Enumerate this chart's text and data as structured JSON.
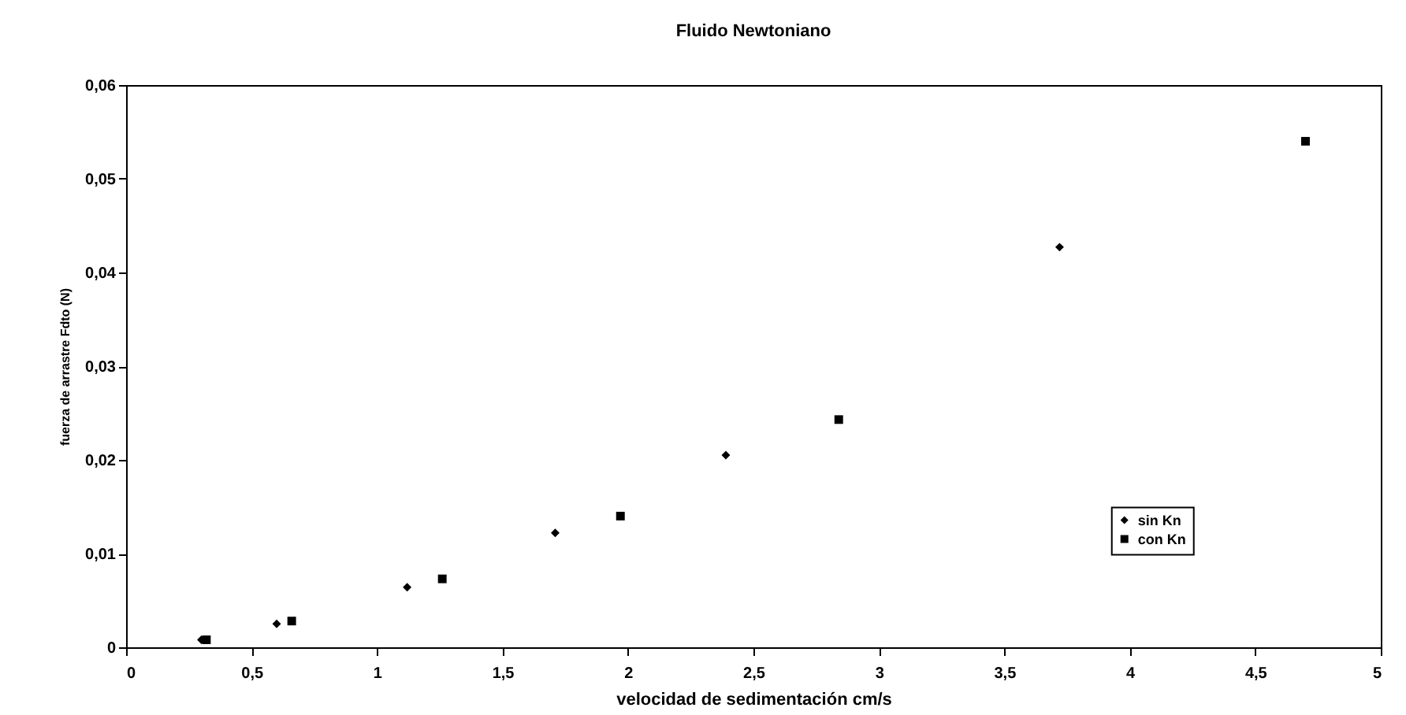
{
  "chart_data": {
    "type": "scatter",
    "title": "Fluido Newtoniano",
    "xlabel": "velocidad de sedimentación cm/s",
    "ylabel": "fuerza de arrastre Fdto (N)",
    "series": [
      {
        "name": "sin Kn",
        "color": "#000000",
        "marker": "diamond",
        "x": [
          0.3,
          0.6,
          1.12,
          1.71,
          2.39,
          3.72
        ],
        "values": [
          0.0008,
          0.0025,
          0.0064,
          0.0122,
          0.0205,
          0.0427
        ]
      },
      {
        "name": "con Kn",
        "color": "#000000",
        "marker": "square",
        "x": [
          0.32,
          0.66,
          1.26,
          1.97,
          2.84,
          4.7
        ],
        "values": [
          0.0008,
          0.0028,
          0.0073,
          0.014,
          0.0243,
          0.054
        ]
      }
    ],
    "xlim": [
      0,
      5
    ],
    "xticks": [
      0,
      {
        "value": 0.5,
        "label": "0,5"
      },
      1,
      {
        "value": 1.5,
        "label": "1,5"
      },
      2,
      {
        "value": 2.5,
        "label": "2,5"
      },
      3,
      {
        "value": 3.5,
        "label": "3,5"
      },
      4,
      {
        "value": 4.5,
        "label": "4,5"
      },
      5
    ],
    "ylim": [
      0,
      0.06
    ],
    "yticks": [
      0,
      {
        "value": 0.01,
        "label": "0,01"
      },
      {
        "value": 0.02,
        "label": "0,02"
      },
      {
        "value": 0.03,
        "label": "0,03"
      },
      {
        "value": 0.04,
        "label": "0,04"
      },
      {
        "value": 0.05,
        "label": "0,05"
      },
      {
        "value": 0.06,
        "label": "0,06"
      }
    ],
    "grid": false,
    "legend": "right"
  }
}
